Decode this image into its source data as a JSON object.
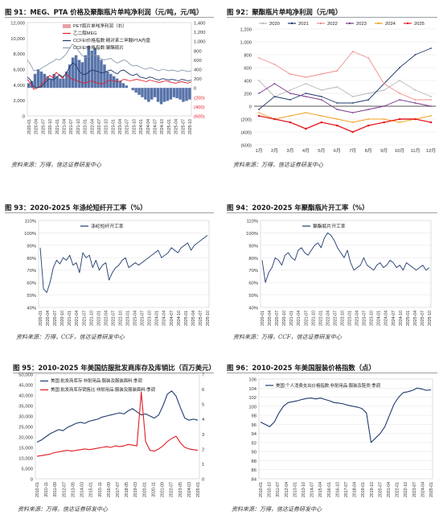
{
  "figures": [
    {
      "title": "图 91：MEG、PTA 价格及聚酯瓶片单吨净利润（元/吨，元/吨）",
      "source": "资料来源：万得，信达证券研发中心"
    },
    {
      "title": "图 92：聚酯瓶片单吨净利润（元/吨）",
      "source": "资料来源：万得，信达证券研发中心"
    },
    {
      "title": "图 93：2020-2025 年涤纶短纤开工率（%）",
      "source": "资料来源：万得，CCF，信达证券研发中心"
    },
    {
      "title": "图 94：2020-2025 年聚酯瓶片开工率（%）",
      "source": "资料来源：万得，CCF，信达证券研发中心"
    },
    {
      "title": "图 95：2010-2025 年美国纺服批发商库存及库销比（百万美元）",
      "source": "资料来源：万得，信达证券研发中心"
    },
    {
      "title": "图 96：2010-2025 年美国服装价格指数（点）",
      "source": "资料来源：万得，信达证券研发中心"
    }
  ],
  "colors": {
    "navy": "#1f3a6e",
    "red": "#e31c23",
    "gray": "#8c9aae",
    "pink": "#e8a0a6"
  },
  "chart_data": [
    {
      "type": "area",
      "title": "MEG、PTA 价格及聚酯瓶片单吨净利润（元/吨，元/吨）",
      "x_ticks": [
        "2020-01",
        "2020-04",
        "2020-07",
        "2020-10",
        "2021-01",
        "2021-04",
        "2021-07",
        "2021-10",
        "2022-01",
        "2022-04",
        "2022-07",
        "2022-10",
        "2023-01",
        "2023-04",
        "2023-07",
        "2023-10",
        "2024-01",
        "2024-04",
        "2024-07",
        "2024-10",
        "2025-01",
        "2025-04",
        "2025-07",
        "2025-10"
      ],
      "ylim_left": [
        0,
        12000
      ],
      "yticks_left": [
        "0",
        "2,000",
        "4,000",
        "6,000",
        "8,000",
        "10,000",
        "12,000"
      ],
      "ylim_right": [
        -600,
        1400
      ],
      "yticks_right": [
        "(600)",
        "(400)",
        "(200)",
        "0",
        "200",
        "400",
        "600",
        "800",
        "1,000",
        "1,200",
        "1,400"
      ],
      "legend": [
        "PET瓶片单吨净利润（右）",
        "乙二醇MEG",
        "CCFEI价格指数:精对苯二甲酸PTA内盘",
        "CCFEI价格指数:聚酯瓶片"
      ],
      "series": [
        {
          "name": "PET瓶片单吨净利润（右）",
          "axis": "right",
          "values": [
            100,
            150,
            300,
            400,
            350,
            300,
            250,
            200,
            300,
            250,
            200,
            200,
            350,
            500,
            650,
            700,
            600,
            550,
            700,
            900,
            800,
            850,
            700,
            600,
            500,
            350,
            300,
            250,
            200,
            150,
            100,
            50,
            0,
            -50,
            -100,
            -150,
            -200,
            -250,
            -300,
            -250,
            -200,
            -300,
            -350,
            -300,
            -280,
            -250,
            -200,
            -220,
            -250,
            -300,
            -280,
            -250
          ]
        },
        {
          "name": "乙二醇MEG",
          "axis": "left",
          "values": [
            4700,
            4200,
            3400,
            3600,
            3800,
            4300,
            4800,
            5200,
            4900,
            5600,
            5200,
            4800,
            5500,
            5000,
            4700,
            4600,
            4400,
            4300,
            4200,
            4400,
            4500,
            4300,
            4200,
            4100,
            4200,
            4500,
            4600,
            4500,
            4400,
            4500,
            4700,
            4600,
            4500,
            4600,
            4700,
            4600,
            4500,
            4400,
            4600,
            4500,
            4400,
            4300,
            4400,
            4500,
            4400,
            4300,
            4200,
            4300,
            4400,
            4300,
            4200,
            4400
          ]
        },
        {
          "name": "CCFEI价格指数:精对苯二甲酸PTA内盘",
          "axis": "left",
          "values": [
            5000,
            4600,
            3700,
            3600,
            3700,
            4000,
            4500,
            4800,
            4600,
            4900,
            5300,
            5000,
            5400,
            6200,
            6800,
            6600,
            5800,
            5400,
            5300,
            5600,
            5900,
            5800,
            5700,
            5500,
            5600,
            5800,
            5900,
            5600,
            5400,
            5800,
            5900,
            5600,
            5300,
            5200,
            5400,
            5000,
            4900,
            4800,
            5000,
            4900,
            4700,
            4600,
            4800,
            4700,
            4600,
            4700,
            4600,
            4500,
            4700,
            4600,
            4500,
            4600
          ]
        },
        {
          "name": "CCFEI价格指数:聚酯瓶片",
          "axis": "left",
          "values": [
            7200,
            6600,
            5800,
            5900,
            6000,
            6300,
            6500,
            6800,
            7000,
            7300,
            7200,
            7500,
            7900,
            8600,
            9200,
            9000,
            8300,
            7800,
            7500,
            7600,
            7900,
            7800,
            7600,
            7300,
            7200,
            7300,
            7400,
            7000,
            6800,
            7000,
            7200,
            7000,
            6600,
            6400,
            6500,
            6300,
            6100,
            6000,
            6200,
            6100,
            5900,
            5800,
            6000,
            5900,
            5800,
            5900,
            5800,
            5700,
            5900,
            5800,
            5700,
            5800
          ]
        }
      ]
    },
    {
      "type": "line",
      "title": "聚酯瓶片单吨净利润（元/吨）",
      "categories": [
        "1月",
        "2月",
        "3月",
        "4月",
        "5月",
        "6月",
        "7月",
        "8月",
        "9月",
        "10月",
        "11月",
        "12月"
      ],
      "ylim": [
        -600,
        1200
      ],
      "yticks": [
        "(600)",
        "(400)",
        "(200)",
        "0",
        "200",
        "400",
        "600",
        "800",
        "1,000",
        "1,200"
      ],
      "series": [
        {
          "name": "2020",
          "values": [
            400,
            150,
            250,
            350,
            250,
            300,
            150,
            200,
            250,
            400,
            250,
            150
          ]
        },
        {
          "name": "2021",
          "values": [
            -50,
            150,
            100,
            200,
            150,
            50,
            50,
            100,
            350,
            600,
            800,
            900
          ]
        },
        {
          "name": "2022",
          "values": [
            750,
            650,
            500,
            450,
            500,
            550,
            850,
            750,
            350,
            200,
            100,
            100
          ]
        },
        {
          "name": "2023",
          "values": [
            200,
            350,
            200,
            150,
            100,
            -50,
            -100,
            -50,
            0,
            100,
            50,
            0
          ]
        },
        {
          "name": "2024",
          "values": [
            -100,
            -200,
            -150,
            -100,
            -150,
            -200,
            -250,
            -200,
            -200,
            -250,
            -200,
            -150
          ]
        },
        {
          "name": "2025",
          "values": [
            -150,
            -200,
            -250,
            -350,
            -250,
            -300,
            -400,
            -300,
            -250,
            -200,
            -200,
            -250
          ]
        }
      ]
    },
    {
      "type": "line",
      "title": "2020-2025 年涤纶短纤开工率（%）",
      "x_ticks": [
        "2020-01",
        "2020-04",
        "2020-07",
        "2020-10",
        "2021-01",
        "2021-04",
        "2021-07",
        "2021-10",
        "2022-01",
        "2022-04",
        "2022-07",
        "2022-10",
        "2023-01",
        "2023-04",
        "2023-07",
        "2023-10",
        "2024-01",
        "2024-04",
        "2024-07",
        "2024-10",
        "2025-01",
        "2025-04",
        "2025-07",
        "2025-10"
      ],
      "ylim": [
        40,
        110
      ],
      "yticks": [
        "40%",
        "50%",
        "60%",
        "70%",
        "80%",
        "90%",
        "100%",
        "110%"
      ],
      "series": [
        {
          "name": "涤纶短纤开工率",
          "values": [
            88,
            55,
            52,
            60,
            72,
            78,
            75,
            80,
            78,
            82,
            74,
            76,
            68,
            84,
            80,
            82,
            72,
            78,
            70,
            74,
            76,
            62,
            68,
            72,
            74,
            78,
            80,
            72,
            74,
            76,
            74,
            76,
            78,
            80,
            82,
            84,
            86,
            80,
            82,
            84,
            88,
            86,
            84,
            88,
            90,
            92,
            86,
            90,
            92,
            94,
            96,
            98
          ]
        }
      ]
    },
    {
      "type": "line",
      "title": "2020-2025 年聚酯瓶片开工率（%）",
      "x_ticks": [
        "2020-01",
        "2020-04",
        "2020-07",
        "2020-10",
        "2021-01",
        "2021-04",
        "2021-07",
        "2021-10",
        "2022-01",
        "2022-04",
        "2022-07",
        "2022-10",
        "2023-01",
        "2023-04",
        "2023-07",
        "2023-10",
        "2024-01",
        "2024-04",
        "2024-07",
        "2024-10",
        "2025-01",
        "2025-04",
        "2025-07",
        "2025-10"
      ],
      "ylim": [
        40,
        110
      ],
      "yticks": [
        "40%",
        "50%",
        "60%",
        "70%",
        "80%",
        "90%",
        "100%",
        "110%"
      ],
      "series": [
        {
          "name": "聚酯瓶片开工率",
          "values": [
            78,
            60,
            68,
            72,
            80,
            78,
            74,
            82,
            84,
            80,
            78,
            86,
            88,
            84,
            82,
            86,
            90,
            92,
            88,
            96,
            100,
            98,
            94,
            88,
            84,
            80,
            86,
            76,
            70,
            72,
            74,
            80,
            74,
            72,
            70,
            74,
            76,
            72,
            74,
            78,
            76,
            72,
            74,
            70,
            76,
            74,
            72,
            70,
            72,
            74,
            70,
            72
          ]
        }
      ]
    },
    {
      "type": "line",
      "title": "2010-2025 年美国纺服批发商库存及库销比（百万美元）",
      "x_ticks": [
        "2010-01",
        "2010-11",
        "2011-09",
        "2012-07",
        "2013-05",
        "2014-03",
        "2015-01",
        "2015-11",
        "2016-09",
        "2017-07",
        "2018-05",
        "2019-03",
        "2020-01",
        "2020-11",
        "2021-09",
        "2022-07",
        "2023-05",
        "2024-03",
        "2025-01"
      ],
      "ylim_left": [
        0,
        50000
      ],
      "yticks_left": [
        "0",
        "5,000",
        "10,000",
        "15,000",
        "20,000",
        "25,000",
        "30,000",
        "35,000",
        "40,000",
        "45,000",
        "50,000"
      ],
      "ylim_right": [
        0,
        7
      ],
      "yticks_right": [
        "0",
        "1",
        "2",
        "3",
        "4",
        "5",
        "6",
        "7"
      ],
      "legend": [
        "美国:批发商库存:非耐用品:服装及服装面料:季调",
        "美国:批发商库存销售比:非耐用品:服装及服装面料:季调"
      ],
      "series": [
        {
          "name": "美国:批发商库存:非耐用品:服装及服装面料:季调",
          "axis": "left",
          "values": [
            17500,
            18500,
            20000,
            21500,
            22500,
            23500,
            23000,
            24500,
            25500,
            26500,
            27000,
            26500,
            27500,
            28000,
            28500,
            29500,
            30000,
            30500,
            31000,
            31500,
            31000,
            32500,
            33500,
            32000,
            30500,
            31000,
            30000,
            29000,
            30500,
            35000,
            40500,
            42000,
            39500,
            34000,
            29000,
            28000,
            28500,
            28000
          ]
        },
        {
          "name": "美国:批发商库存销售比:非耐用品:服装及服装面料:季调",
          "axis": "right",
          "values": [
            1.5,
            1.55,
            1.6,
            1.65,
            1.75,
            1.8,
            1.85,
            1.9,
            1.85,
            1.9,
            1.95,
            2.0,
            1.95,
            2.0,
            2.05,
            2.1,
            2.15,
            2.1,
            2.2,
            2.15,
            2.2,
            2.3,
            2.25,
            2.2,
            5.8,
            2.5,
            1.9,
            1.85,
            2.0,
            2.2,
            2.5,
            2.7,
            2.85,
            2.4,
            2.1,
            2.0,
            1.95,
            1.9
          ]
        }
      ]
    },
    {
      "type": "line",
      "title": "2010-2025 年美国服装价格指数（点）",
      "x_ticks": [
        "2010-01",
        "2010-10",
        "2011-07",
        "2012-04",
        "2013-01",
        "2013-10",
        "2014-07",
        "2015-04",
        "2016-01",
        "2016-10",
        "2017-07",
        "2018-04",
        "2019-01",
        "2019-10",
        "2020-07",
        "2021-04",
        "2022-01",
        "2022-10",
        "2023-07",
        "2024-04",
        "2025-01"
      ],
      "ylim": [
        84,
        106
      ],
      "yticks": [
        "84",
        "86",
        "88",
        "90",
        "92",
        "94",
        "96",
        "98",
        "100",
        "102",
        "104",
        "106"
      ],
      "legend": [
        "美国:个人消费支出价格指数:非耐用品:服装及鞋类:季调"
      ],
      "series": [
        {
          "name": "美国:个人消费支出价格指数:非耐用品:服装及鞋类:季调",
          "values": [
            96.5,
            96,
            95.5,
            96.5,
            98.5,
            100,
            100.8,
            101,
            101.2,
            101.5,
            101.7,
            101.8,
            101.6,
            101.8,
            101.5,
            101.2,
            100.8,
            100.7,
            100.5,
            100.2,
            100,
            99.8,
            99.5,
            98.5,
            92,
            93,
            94,
            95.5,
            98,
            100.5,
            102,
            103,
            103.2,
            103.5,
            104,
            103.8,
            103.5,
            103.6
          ]
        }
      ]
    }
  ]
}
